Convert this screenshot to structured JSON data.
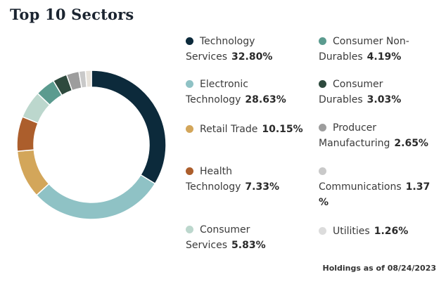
{
  "title": "Top 10 Sectors",
  "footer": "Holdings as of 08/24/2023",
  "chart_data": {
    "type": "pie",
    "style": "donut",
    "title": "Top 10 Sectors",
    "categories": [
      "Technology Services",
      "Electronic Technology",
      "Retail Trade",
      "Health Technology",
      "Consumer Services",
      "Consumer Non-Durables",
      "Consumer Durables",
      "Producer Manufacturing",
      "Communications",
      "Utilities"
    ],
    "values": [
      32.8,
      28.63,
      10.15,
      7.33,
      5.83,
      4.19,
      3.03,
      2.65,
      1.37,
      1.26
    ],
    "labels": [
      "32.80%",
      "28.63%",
      "10.15%",
      "7.33%",
      "5.83%",
      "4.19%",
      "3.03%",
      "2.65%",
      "1.37 %",
      "1.26%"
    ],
    "colors": [
      "#0c2a3b",
      "#8fc2c5",
      "#d3a65a",
      "#ac5e2c",
      "#bcd7cd",
      "#5b9b8f",
      "#2e4a3e",
      "#9d9d9d",
      "#c9c9c9",
      "#e8e3db"
    ]
  },
  "legend": [
    {
      "label": "Technology Services",
      "value": "32.80%",
      "color": "#0c2a3b"
    },
    {
      "label": "Electronic Technology",
      "value": "28.63%",
      "color": "#8fc2c5"
    },
    {
      "label": "Retail Trade",
      "value": "10.15%",
      "color": "#d3a65a"
    },
    {
      "label": "Health Technology",
      "value": "7.33%",
      "color": "#ac5e2c"
    },
    {
      "label": "Consumer Services",
      "value": "5.83%",
      "color": "#bcd7cd"
    },
    {
      "label": "Consumer Non-Durables",
      "value": "4.19%",
      "color": "#5b9b8f"
    },
    {
      "label": "Consumer Durables",
      "value": "3.03%",
      "color": "#2e4a3e"
    },
    {
      "label": "Producer Manufacturing",
      "value": "2.65%",
      "color": "#9d9d9d"
    },
    {
      "label": "Communications",
      "value": "1.37 %",
      "color": "#c9c9c9"
    },
    {
      "label": "Utilities",
      "value": "1.26%",
      "color": "#dcdcdc"
    }
  ]
}
